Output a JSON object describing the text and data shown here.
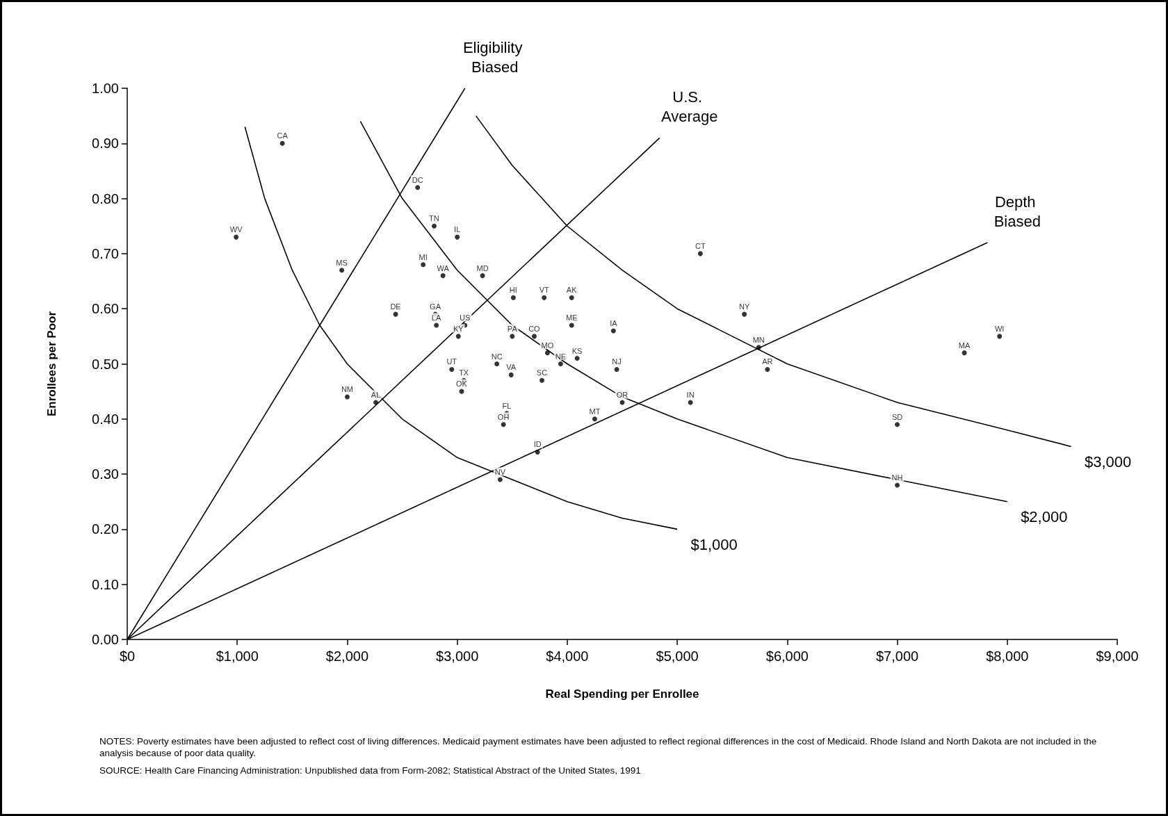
{
  "chart_data": {
    "type": "scatter",
    "xlabel": "Real Spending per Enrollee",
    "ylabel": "Enrollees per Poor",
    "annotations": [
      "NOTES: Poverty estimates have been adjusted to reflect cost of living differences. Medicaid payment estimates have been adjusted to reflect regional differences in the cost of Medicaid. Rhode Island and North Dakota are not included in the analysis because of poor data quality.",
      "SOURCE: Health Care Financing Administration: Unpublished data from Form-2082; Statistical Abstract of the United States, 1991"
    ],
    "xlim": [
      0,
      9000
    ],
    "xticks": [
      {
        "value": 0,
        "label": "$0"
      },
      {
        "value": 1000,
        "label": "$1,000"
      },
      {
        "value": 2000,
        "label": "$2,000"
      },
      {
        "value": 3000,
        "label": "$3,000"
      },
      {
        "value": 4000,
        "label": "$4,000"
      },
      {
        "value": 5000,
        "label": "$5,000"
      },
      {
        "value": 6000,
        "label": "$6,000"
      },
      {
        "value": 7000,
        "label": "$7,000"
      },
      {
        "value": 8000,
        "label": "$8,000"
      },
      {
        "value": 9000,
        "label": "$9,000"
      }
    ],
    "ylim": [
      0,
      1
    ],
    "yticks": [
      {
        "value": 0,
        "label": "0.00"
      },
      {
        "value": 0.1,
        "label": "0.10"
      },
      {
        "value": 0.2,
        "label": "0.20"
      },
      {
        "value": 0.3,
        "label": "0.30"
      },
      {
        "value": 0.4,
        "label": "0.40"
      },
      {
        "value": 0.5,
        "label": "0.50"
      },
      {
        "value": 0.6,
        "label": "0.60"
      },
      {
        "value": 0.7,
        "label": "0.70"
      },
      {
        "value": 0.8,
        "label": "0.80"
      },
      {
        "value": 0.9,
        "label": "0.90"
      },
      {
        "value": 1,
        "label": "1.00"
      }
    ],
    "marker": "circle",
    "series": [
      {
        "color": "#000000",
        "x": [
          1410,
          990,
          2640,
          2790,
          3000,
          1950,
          2690,
          2870,
          3230,
          3510,
          3790,
          4040,
          2440,
          2800,
          2810,
          3070,
          3010,
          4040,
          4420,
          3500,
          3700,
          3820,
          4090,
          3940,
          4450,
          2950,
          3360,
          3490,
          3770,
          3060,
          3040,
          2000,
          2260,
          4500,
          5120,
          3450,
          3420,
          4250,
          3730,
          3390,
          5210,
          5610,
          5740,
          5820,
          7000,
          7000,
          7610,
          7930
        ],
        "values": [
          0.9,
          0.73,
          0.82,
          0.75,
          0.73,
          0.67,
          0.68,
          0.66,
          0.66,
          0.62,
          0.62,
          0.62,
          0.59,
          0.59,
          0.57,
          0.57,
          0.55,
          0.57,
          0.56,
          0.55,
          0.55,
          0.52,
          0.51,
          0.5,
          0.49,
          0.49,
          0.5,
          0.48,
          0.47,
          0.47,
          0.45,
          0.44,
          0.43,
          0.43,
          0.43,
          0.41,
          0.39,
          0.4,
          0.34,
          0.29,
          0.7,
          0.59,
          0.53,
          0.49,
          0.39,
          0.28,
          0.52,
          0.55
        ],
        "value_labels": [
          "CA",
          "WV",
          "DC",
          "TN",
          "IL",
          "MS",
          "MI",
          "WA",
          "MD",
          "HI",
          "VT",
          "AK",
          "DE",
          "GA",
          "LA",
          "US",
          "KY",
          "ME",
          "IA",
          "PA",
          "CO",
          "MO",
          "KS",
          "NE",
          "NJ",
          "UT",
          "NC",
          "VA",
          "SC",
          "TX",
          "OK",
          "NM",
          "AL",
          "OR",
          "IN",
          "FL",
          "OH",
          "MT",
          "ID",
          "NV",
          "CT",
          "NY",
          "MN",
          "AR",
          "SD",
          "NH",
          "MA",
          "WI"
        ]
      },
      {
        "type": "line",
        "marker": "none",
        "name": "Eligibility Biased",
        "color": "#000000",
        "x": [
          0,
          3070
        ],
        "values": [
          0,
          1.0
        ]
      },
      {
        "type": "line",
        "marker": "none",
        "name": "U.S. Average",
        "color": "#000000",
        "x": [
          0,
          4840
        ],
        "values": [
          0,
          0.91
        ]
      },
      {
        "type": "line",
        "marker": "none",
        "name": "Depth Biased",
        "color": "#000000",
        "x": [
          0,
          7820
        ],
        "values": [
          0,
          0.72
        ]
      },
      {
        "type": "line",
        "marker": "none",
        "name": "$1,000",
        "color": "#000000",
        "x": [
          1070,
          1250,
          1500,
          1750,
          2000,
          2500,
          3000,
          3500,
          4000,
          4500,
          5000
        ],
        "values": [
          0.93,
          0.8,
          0.67,
          0.57,
          0.5,
          0.4,
          0.33,
          0.29,
          0.25,
          0.22,
          0.2
        ]
      },
      {
        "type": "line",
        "marker": "none",
        "name": "$2,000",
        "color": "#000000",
        "x": [
          2120,
          2500,
          3000,
          3500,
          4000,
          4500,
          5000,
          6000,
          7000,
          8000
        ],
        "values": [
          0.94,
          0.8,
          0.67,
          0.57,
          0.5,
          0.44,
          0.4,
          0.33,
          0.29,
          0.25
        ]
      },
      {
        "type": "line",
        "marker": "none",
        "name": "$3,000",
        "color": "#000000",
        "x": [
          3170,
          3500,
          4000,
          4500,
          5000,
          5500,
          6000,
          7000,
          8000,
          8580
        ],
        "values": [
          0.95,
          0.86,
          0.75,
          0.67,
          0.6,
          0.55,
          0.5,
          0.43,
          0.38,
          0.35
        ]
      }
    ]
  }
}
